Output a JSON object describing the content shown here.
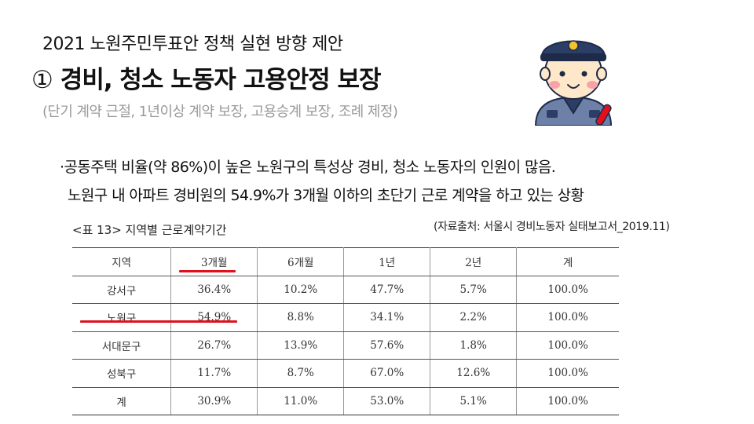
{
  "header": {
    "kicker": "2021 노원주민투표안 정책 실현 방향 제안",
    "title_number": "①",
    "title": "경비, 청소 노동자 고용안정 보장",
    "subtitle": "(단기 계약 근절, 1년이상 계약 보장, 고용승계 보장, 조례 제정)"
  },
  "body": {
    "bullet_line1": "·공동주택 비율(약 86%)이 높은 노원구의 특성상 경비, 청소 노동자의 인원이 많음.",
    "bullet_line2": "노원구 내 아파트 경비원의 54.9%가 3개월 이하의 초단기 근로 계약을 하고 있는 상황"
  },
  "table": {
    "caption": "<표  13>  지역별  근로계약기간",
    "source": "(자료출처: 서울시 경비노동자 실태보고서_2019.11)",
    "headers": [
      "지역",
      "3개월",
      "6개월",
      "1년",
      "2년",
      "계"
    ],
    "rows": [
      [
        "강서구",
        "36.4%",
        "10.2%",
        "47.7%",
        "5.7%",
        "100.0%"
      ],
      [
        "노원구",
        "54.9%",
        "8.8%",
        "34.1%",
        "2.2%",
        "100.0%"
      ],
      [
        "서대문구",
        "26.7%",
        "13.9%",
        "57.6%",
        "1.8%",
        "100.0%"
      ],
      [
        "성북구",
        "11.7%",
        "8.7%",
        "67.0%",
        "12.6%",
        "100.0%"
      ],
      [
        "계",
        "30.9%",
        "11.0%",
        "53.0%",
        "5.1%",
        "100.0%"
      ]
    ]
  },
  "illustration": {
    "icon": "security-guard-icon"
  },
  "colors": {
    "highlight_underline": "#e0101c",
    "guard_uniform": "#2c3e66",
    "guard_shirt": "#6d80a8"
  }
}
